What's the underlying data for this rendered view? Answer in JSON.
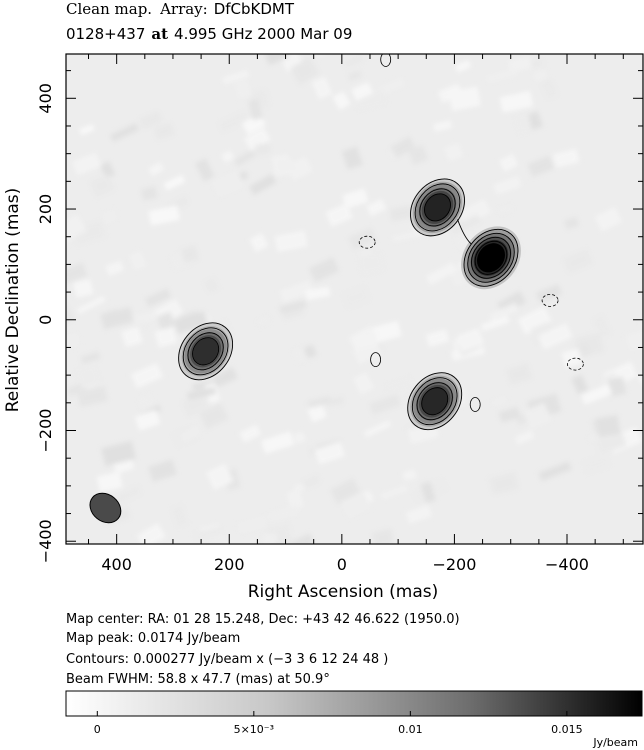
{
  "header": {
    "line1_prefix": "Clean map.",
    "line1_array_label": "Array:",
    "line1_array_value": "DfCbKDMT",
    "line2_source": "0128+437",
    "line2_at": "at",
    "line2_freq": "4.995 GHz 2000 Mar 09"
  },
  "chart_data": {
    "type": "heatmap",
    "xlabel": "Right Ascension  (mas)",
    "ylabel": "Relative Declination  (mas)",
    "xlim": [
      490,
      -535
    ],
    "ylim": [
      -405,
      480
    ],
    "x_ticks": [
      400,
      200,
      0,
      -200,
      -400
    ],
    "y_ticks": [
      400,
      200,
      0,
      -200,
      -400
    ],
    "x_tick_labels": [
      "400",
      "200",
      "0",
      "−200",
      "−400"
    ],
    "y_tick_labels": [
      "400",
      "200",
      "0",
      "−200",
      "−400"
    ],
    "contour_levels_rel": [
      3,
      6,
      12,
      24,
      48
    ],
    "components": [
      {
        "x": 242,
        "y": -57,
        "peak": 0.0085,
        "levels": 4
      },
      {
        "x": -170,
        "y": 203,
        "peak": 0.0105,
        "levels": 4
      },
      {
        "x": -265,
        "y": 112,
        "peak": 0.0174,
        "levels": 5
      },
      {
        "x": -165,
        "y": -147,
        "peak": 0.0098,
        "levels": 4
      }
    ],
    "negative_contours": [
      {
        "x": -45,
        "y": 140
      },
      {
        "x": -370,
        "y": 35
      },
      {
        "x": -415,
        "y": -80
      }
    ],
    "positive_blips": [
      {
        "x": -78,
        "y": 470
      },
      {
        "x": -60,
        "y": -72
      },
      {
        "x": -237,
        "y": -153
      }
    ],
    "beam": {
      "x": 420,
      "y": -340,
      "major": 58.8,
      "minor": 47.7,
      "pa": 50.9
    },
    "colorbar": {
      "min": -0.001,
      "max": 0.0174,
      "ticks": [
        0,
        0.005,
        0.01,
        0.015
      ],
      "tick_labels": [
        "0",
        "5×10⁻³",
        "0.01",
        "0.015"
      ],
      "unit": "Jy/beam"
    }
  },
  "footer": {
    "map_center": "Map center:  RA: 01 28 15.248,  Dec: +43 42 46.622 (1950.0)",
    "map_peak": "Map peak: 0.0174 Jy/beam",
    "contours": "Contours: 0.000277 Jy/beam x (−3 3 6 12 24 48 )",
    "beam": "Beam FWHM: 58.8 x 47.7 (mas) at 50.9°"
  }
}
